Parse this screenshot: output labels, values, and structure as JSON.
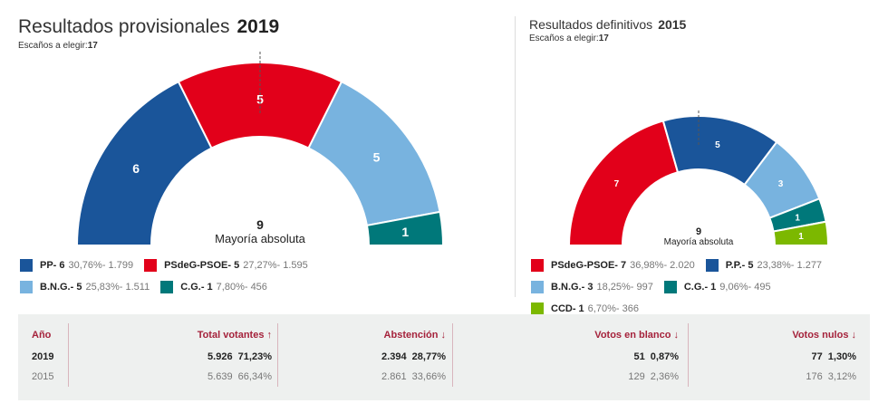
{
  "left": {
    "title": "Resultados provisionales",
    "year": "2019",
    "seats_label": "Escaños a elegir:",
    "seats": "17",
    "majority_num": "9",
    "majority_label": "Mayoría absoluta",
    "parties": [
      {
        "name": "PP- 6",
        "seats": 6,
        "pct": "30,76%- 1.799",
        "color": "#1a559a"
      },
      {
        "name": "PSdeG-PSOE- 5",
        "seats": 5,
        "pct": "27,27%- 1.595",
        "color": "#e2001a"
      },
      {
        "name": "B.N.G.- 5",
        "seats": 5,
        "pct": "25,83%- 1.511",
        "color": "#78b3df"
      },
      {
        "name": "C.G.- 1",
        "seats": 1,
        "pct": "7,80%- 456",
        "color": "#00787a"
      }
    ]
  },
  "right": {
    "title": "Resultados definitivos",
    "year": "2015",
    "seats_label": "Escaños a elegir:",
    "seats": "17",
    "majority_num": "9",
    "majority_label": "Mayoría absoluta",
    "parties": [
      {
        "name": "PSdeG-PSOE- 7",
        "seats": 7,
        "pct": "36,98%- 2.020",
        "color": "#e2001a"
      },
      {
        "name": "P.P.- 5",
        "seats": 5,
        "pct": "23,38%- 1.277",
        "color": "#1a559a"
      },
      {
        "name": "B.N.G.- 3",
        "seats": 3,
        "pct": "18,25%- 997",
        "color": "#78b3df"
      },
      {
        "name": "C.G.- 1",
        "seats": 1,
        "pct": "9,06%- 495",
        "color": "#00787a"
      },
      {
        "name": "CCD- 1",
        "seats": 1,
        "pct": "6,70%- 366",
        "color": "#7cb800"
      }
    ]
  },
  "table": {
    "headers": [
      "Año",
      "Total votantes ↑",
      "Abstención ↓",
      "Votos en blanco ↓",
      "Votos nulos ↓"
    ],
    "rows": [
      [
        "2019",
        "5.926  71,23%",
        "2.394  28,77%",
        "51  0,87%",
        "77  1,30%"
      ],
      [
        "2015",
        "5.639  66,34%",
        "2.861  33,66%",
        "129  2,36%",
        "176  3,12%"
      ]
    ]
  }
}
